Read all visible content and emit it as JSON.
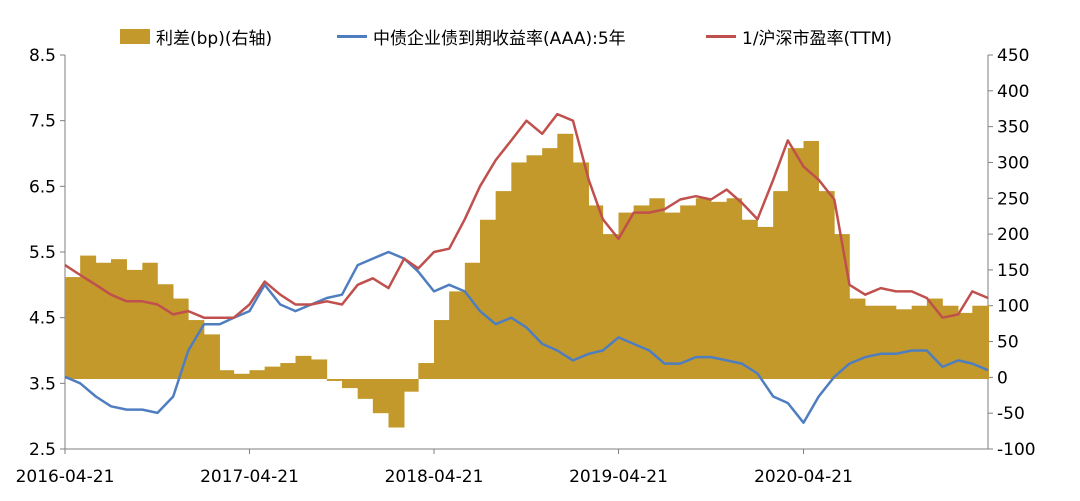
{
  "legend": {
    "spread_label": "利差(bp)(右轴)",
    "bond_label": "中债企业债到期收益率(AAA):5年",
    "pe_label": "1/沪深市盈率(TTM)"
  },
  "colors": {
    "spread": "#C2992A",
    "bond": "#4F7EC0",
    "pe": "#C0504D",
    "axis": "#7F7F7F"
  },
  "chart_data": {
    "type": "bar+line",
    "title": "",
    "x_ticks": [
      "2016-04-21",
      "2017-04-21",
      "2018-04-21",
      "2019-04-21",
      "2020-04-21"
    ],
    "x_range": [
      "2016-04-21",
      "2021-04-21"
    ],
    "y_left": {
      "range": [
        2.5,
        8.5
      ],
      "ticks": [
        "2.5",
        "3.5",
        "4.5",
        "5.5",
        "6.5",
        "7.5",
        "8.5"
      ]
    },
    "y_right": {
      "range": [
        -100,
        450
      ],
      "ticks": [
        "-100",
        "-50",
        "0",
        "50",
        "100",
        "150",
        "200",
        "250",
        "300",
        "350",
        "400",
        "450"
      ]
    },
    "series": [
      {
        "name": "利差(bp)(右轴)",
        "kind": "bar",
        "axis": "right",
        "points": [
          [
            "2016-04-21",
            140
          ],
          [
            "2016-05-21",
            170
          ],
          [
            "2016-06-21",
            160
          ],
          [
            "2016-07-21",
            165
          ],
          [
            "2016-08-21",
            150
          ],
          [
            "2016-09-21",
            160
          ],
          [
            "2016-10-21",
            130
          ],
          [
            "2016-11-21",
            110
          ],
          [
            "2016-12-21",
            80
          ],
          [
            "2017-01-21",
            60
          ],
          [
            "2017-02-21",
            10
          ],
          [
            "2017-03-21",
            5
          ],
          [
            "2017-04-21",
            10
          ],
          [
            "2017-05-21",
            15
          ],
          [
            "2017-06-21",
            20
          ],
          [
            "2017-07-21",
            30
          ],
          [
            "2017-08-21",
            25
          ],
          [
            "2017-09-21",
            -5
          ],
          [
            "2017-10-21",
            -15
          ],
          [
            "2017-11-21",
            -30
          ],
          [
            "2017-12-21",
            -50
          ],
          [
            "2018-01-21",
            -70
          ],
          [
            "2018-02-21",
            -20
          ],
          [
            "2018-03-21",
            20
          ],
          [
            "2018-04-21",
            80
          ],
          [
            "2018-05-21",
            120
          ],
          [
            "2018-06-21",
            160
          ],
          [
            "2018-07-21",
            220
          ],
          [
            "2018-08-21",
            260
          ],
          [
            "2018-09-21",
            300
          ],
          [
            "2018-10-21",
            310
          ],
          [
            "2018-11-21",
            320
          ],
          [
            "2018-12-21",
            340
          ],
          [
            "2019-01-21",
            300
          ],
          [
            "2019-02-21",
            240
          ],
          [
            "2019-03-21",
            200
          ],
          [
            "2019-04-21",
            230
          ],
          [
            "2019-05-21",
            240
          ],
          [
            "2019-06-21",
            250
          ],
          [
            "2019-07-21",
            230
          ],
          [
            "2019-08-21",
            240
          ],
          [
            "2019-09-21",
            250
          ],
          [
            "2019-10-21",
            245
          ],
          [
            "2019-11-21",
            250
          ],
          [
            "2019-12-21",
            220
          ],
          [
            "2020-01-21",
            210
          ],
          [
            "2020-02-21",
            260
          ],
          [
            "2020-03-21",
            320
          ],
          [
            "2020-04-21",
            330
          ],
          [
            "2020-05-21",
            260
          ],
          [
            "2020-06-21",
            200
          ],
          [
            "2020-07-21",
            110
          ],
          [
            "2020-08-21",
            100
          ],
          [
            "2020-09-21",
            100
          ],
          [
            "2020-10-21",
            95
          ],
          [
            "2020-11-21",
            100
          ],
          [
            "2020-12-21",
            110
          ],
          [
            "2021-01-21",
            100
          ],
          [
            "2021-02-21",
            90
          ],
          [
            "2021-03-21",
            100
          ],
          [
            "2021-04-21",
            100
          ]
        ]
      },
      {
        "name": "中债企业债到期收益率(AAA):5年",
        "kind": "line",
        "axis": "left",
        "points": [
          [
            "2016-04-21",
            3.6
          ],
          [
            "2016-05-21",
            3.5
          ],
          [
            "2016-06-21",
            3.3
          ],
          [
            "2016-07-21",
            3.15
          ],
          [
            "2016-08-21",
            3.1
          ],
          [
            "2016-09-21",
            3.1
          ],
          [
            "2016-10-21",
            3.05
          ],
          [
            "2016-11-21",
            3.3
          ],
          [
            "2016-12-21",
            4.0
          ],
          [
            "2017-01-21",
            4.4
          ],
          [
            "2017-02-21",
            4.4
          ],
          [
            "2017-03-21",
            4.5
          ],
          [
            "2017-04-21",
            4.6
          ],
          [
            "2017-05-21",
            5.0
          ],
          [
            "2017-06-21",
            4.7
          ],
          [
            "2017-07-21",
            4.6
          ],
          [
            "2017-08-21",
            4.7
          ],
          [
            "2017-09-21",
            4.8
          ],
          [
            "2017-10-21",
            4.85
          ],
          [
            "2017-11-21",
            5.3
          ],
          [
            "2017-12-21",
            5.4
          ],
          [
            "2018-01-21",
            5.5
          ],
          [
            "2018-02-21",
            5.4
          ],
          [
            "2018-03-21",
            5.2
          ],
          [
            "2018-04-21",
            4.9
          ],
          [
            "2018-05-21",
            5.0
          ],
          [
            "2018-06-21",
            4.9
          ],
          [
            "2018-07-21",
            4.6
          ],
          [
            "2018-08-21",
            4.4
          ],
          [
            "2018-09-21",
            4.5
          ],
          [
            "2018-10-21",
            4.35
          ],
          [
            "2018-11-21",
            4.1
          ],
          [
            "2018-12-21",
            4.0
          ],
          [
            "2019-01-21",
            3.85
          ],
          [
            "2019-02-21",
            3.95
          ],
          [
            "2019-03-21",
            4.0
          ],
          [
            "2019-04-21",
            4.2
          ],
          [
            "2019-05-21",
            4.1
          ],
          [
            "2019-06-21",
            4.0
          ],
          [
            "2019-07-21",
            3.8
          ],
          [
            "2019-08-21",
            3.8
          ],
          [
            "2019-09-21",
            3.9
          ],
          [
            "2019-10-21",
            3.9
          ],
          [
            "2019-11-21",
            3.85
          ],
          [
            "2019-12-21",
            3.8
          ],
          [
            "2020-01-21",
            3.65
          ],
          [
            "2020-02-21",
            3.3
          ],
          [
            "2020-03-21",
            3.2
          ],
          [
            "2020-04-21",
            2.9
          ],
          [
            "2020-05-21",
            3.3
          ],
          [
            "2020-06-21",
            3.6
          ],
          [
            "2020-07-21",
            3.8
          ],
          [
            "2020-08-21",
            3.9
          ],
          [
            "2020-09-21",
            3.95
          ],
          [
            "2020-10-21",
            3.95
          ],
          [
            "2020-11-21",
            4.0
          ],
          [
            "2020-12-21",
            4.0
          ],
          [
            "2021-01-21",
            3.75
          ],
          [
            "2021-02-21",
            3.85
          ],
          [
            "2021-03-21",
            3.8
          ],
          [
            "2021-04-21",
            3.7
          ]
        ]
      },
      {
        "name": "1/沪深市盈率(TTM)",
        "kind": "line",
        "axis": "left",
        "points": [
          [
            "2016-04-21",
            5.3
          ],
          [
            "2016-05-21",
            5.15
          ],
          [
            "2016-06-21",
            5.0
          ],
          [
            "2016-07-21",
            4.85
          ],
          [
            "2016-08-21",
            4.75
          ],
          [
            "2016-09-21",
            4.75
          ],
          [
            "2016-10-21",
            4.7
          ],
          [
            "2016-11-21",
            4.55
          ],
          [
            "2016-12-21",
            4.6
          ],
          [
            "2017-01-21",
            4.5
          ],
          [
            "2017-02-21",
            4.5
          ],
          [
            "2017-03-21",
            4.5
          ],
          [
            "2017-04-21",
            4.7
          ],
          [
            "2017-05-21",
            5.05
          ],
          [
            "2017-06-21",
            4.85
          ],
          [
            "2017-07-21",
            4.7
          ],
          [
            "2017-08-21",
            4.7
          ],
          [
            "2017-09-21",
            4.75
          ],
          [
            "2017-10-21",
            4.7
          ],
          [
            "2017-11-21",
            5.0
          ],
          [
            "2017-12-21",
            5.1
          ],
          [
            "2018-01-21",
            4.95
          ],
          [
            "2018-02-21",
            5.4
          ],
          [
            "2018-03-21",
            5.25
          ],
          [
            "2018-04-21",
            5.5
          ],
          [
            "2018-05-21",
            5.55
          ],
          [
            "2018-06-21",
            6.0
          ],
          [
            "2018-07-21",
            6.5
          ],
          [
            "2018-08-21",
            6.9
          ],
          [
            "2018-09-21",
            7.2
          ],
          [
            "2018-10-21",
            7.5
          ],
          [
            "2018-11-21",
            7.3
          ],
          [
            "2018-12-21",
            7.6
          ],
          [
            "2019-01-21",
            7.5
          ],
          [
            "2019-02-21",
            6.6
          ],
          [
            "2019-03-21",
            6.0
          ],
          [
            "2019-04-21",
            5.7
          ],
          [
            "2019-05-21",
            6.1
          ],
          [
            "2019-06-21",
            6.1
          ],
          [
            "2019-07-21",
            6.15
          ],
          [
            "2019-08-21",
            6.3
          ],
          [
            "2019-09-21",
            6.35
          ],
          [
            "2019-10-21",
            6.3
          ],
          [
            "2019-11-21",
            6.45
          ],
          [
            "2019-12-21",
            6.25
          ],
          [
            "2020-01-21",
            6.0
          ],
          [
            "2020-02-21",
            6.6
          ],
          [
            "2020-03-21",
            7.2
          ],
          [
            "2020-04-21",
            6.8
          ],
          [
            "2020-05-21",
            6.6
          ],
          [
            "2020-06-21",
            6.3
          ],
          [
            "2020-07-21",
            5.0
          ],
          [
            "2020-08-21",
            4.85
          ],
          [
            "2020-09-21",
            4.95
          ],
          [
            "2020-10-21",
            4.9
          ],
          [
            "2020-11-21",
            4.9
          ],
          [
            "2020-12-21",
            4.8
          ],
          [
            "2021-01-21",
            4.5
          ],
          [
            "2021-02-21",
            4.55
          ],
          [
            "2021-03-21",
            4.9
          ],
          [
            "2021-04-21",
            4.8
          ]
        ]
      }
    ],
    "legend_position": "top",
    "grid": false
  }
}
